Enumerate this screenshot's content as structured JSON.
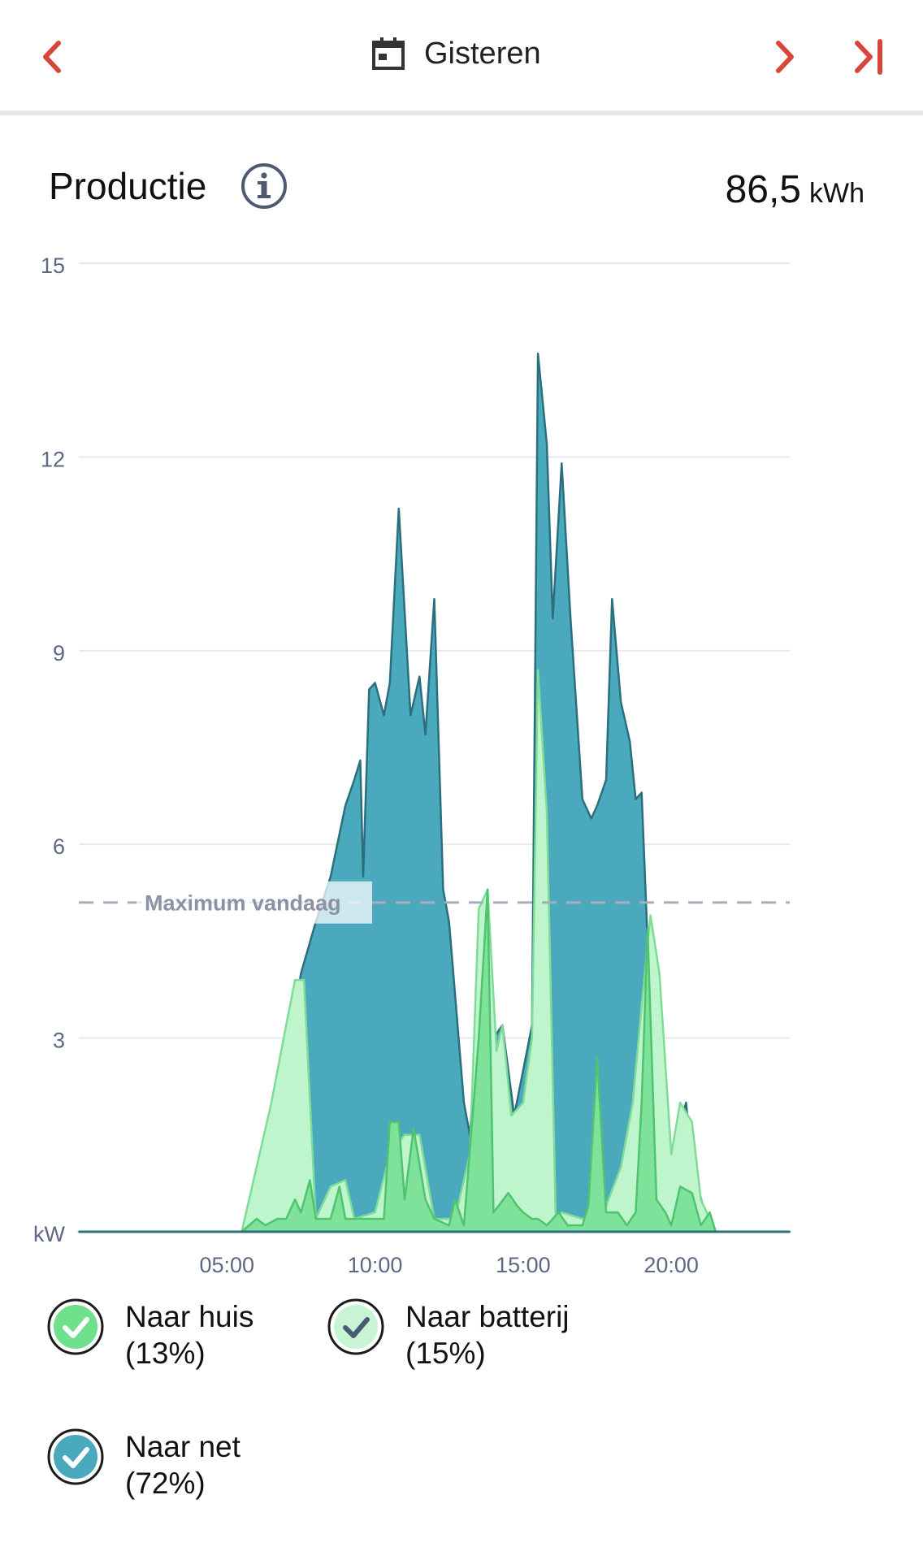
{
  "header": {
    "title": "Gisteren",
    "colors": {
      "accent": "#d8453b"
    }
  },
  "section": {
    "title": "Productie",
    "total_value": "86,5",
    "total_unit": "kWh"
  },
  "chart_data": {
    "type": "area",
    "ylabel": "kW",
    "ylim": [
      0,
      15
    ],
    "yticks": [
      "15",
      "12",
      "9",
      "6",
      "3"
    ],
    "xlim": [
      0,
      24
    ],
    "xticks": [
      {
        "x": 5,
        "label": "05:00"
      },
      {
        "x": 10,
        "label": "10:00"
      },
      {
        "x": 15,
        "label": "15:00"
      },
      {
        "x": 20,
        "label": "20:00"
      }
    ],
    "grid": true,
    "reference_line": {
      "label": "Maximum vandaag",
      "value": 5.1
    },
    "series": [
      {
        "name": "Naar net",
        "color": "#4aa9bd",
        "stroke": "#2b6f7e",
        "points": [
          [
            0,
            0
          ],
          [
            5.5,
            0
          ],
          [
            6.3,
            0.5
          ],
          [
            7.0,
            2.5
          ],
          [
            7.5,
            4.0
          ],
          [
            8.0,
            4.8
          ],
          [
            8.5,
            5.5
          ],
          [
            9.0,
            6.6
          ],
          [
            9.3,
            7.0
          ],
          [
            9.5,
            7.3
          ],
          [
            9.6,
            5.5
          ],
          [
            9.8,
            8.4
          ],
          [
            10.0,
            8.5
          ],
          [
            10.3,
            8.0
          ],
          [
            10.5,
            8.5
          ],
          [
            10.8,
            11.2
          ],
          [
            11.2,
            8.0
          ],
          [
            11.5,
            8.6
          ],
          [
            11.7,
            7.7
          ],
          [
            12.0,
            9.8
          ],
          [
            12.3,
            5.3
          ],
          [
            12.5,
            4.8
          ],
          [
            13.0,
            2.0
          ],
          [
            13.2,
            1.5
          ],
          [
            13.5,
            3.5
          ],
          [
            13.8,
            5.3
          ],
          [
            14.0,
            3.0
          ],
          [
            14.3,
            3.2
          ],
          [
            14.7,
            1.8
          ],
          [
            15.0,
            2.5
          ],
          [
            15.3,
            3.2
          ],
          [
            15.5,
            13.6
          ],
          [
            15.8,
            12.2
          ],
          [
            16.0,
            9.5
          ],
          [
            16.3,
            11.9
          ],
          [
            16.6,
            9.5
          ],
          [
            17.0,
            6.7
          ],
          [
            17.3,
            6.4
          ],
          [
            17.5,
            6.6
          ],
          [
            17.8,
            7.0
          ],
          [
            18.0,
            9.8
          ],
          [
            18.3,
            8.2
          ],
          [
            18.6,
            7.6
          ],
          [
            18.8,
            6.7
          ],
          [
            19.0,
            6.8
          ],
          [
            19.2,
            4.5
          ],
          [
            19.5,
            2.5
          ],
          [
            20.0,
            1.2
          ],
          [
            20.5,
            2.0
          ],
          [
            20.7,
            1.0
          ],
          [
            21.2,
            0.2
          ],
          [
            21.5,
            0
          ],
          [
            24,
            0
          ]
        ]
      },
      {
        "name": "Naar batterij",
        "color": "#bff5cd",
        "stroke": "#7fdc96",
        "points": [
          [
            0,
            0
          ],
          [
            5.5,
            0
          ],
          [
            6.0,
            1.0
          ],
          [
            6.5,
            2.0
          ],
          [
            7.0,
            3.2
          ],
          [
            7.3,
            3.9
          ],
          [
            7.6,
            3.9
          ],
          [
            8.0,
            0.2
          ],
          [
            8.5,
            0.7
          ],
          [
            9.0,
            0.8
          ],
          [
            9.3,
            0.2
          ],
          [
            10.0,
            0.3
          ],
          [
            10.5,
            1.2
          ],
          [
            11.0,
            1.5
          ],
          [
            11.5,
            1.5
          ],
          [
            12.0,
            0.2
          ],
          [
            12.7,
            0.2
          ],
          [
            13.2,
            1.2
          ],
          [
            13.5,
            5.0
          ],
          [
            13.8,
            5.3
          ],
          [
            14.1,
            2.8
          ],
          [
            14.3,
            3.2
          ],
          [
            14.6,
            1.8
          ],
          [
            15.0,
            2.0
          ],
          [
            15.3,
            3.0
          ],
          [
            15.5,
            8.7
          ],
          [
            15.8,
            6.5
          ],
          [
            16.1,
            0.2
          ],
          [
            16.3,
            0.3
          ],
          [
            17.0,
            0.2
          ],
          [
            17.6,
            0.2
          ],
          [
            17.8,
            0.4
          ],
          [
            18.3,
            1.0
          ],
          [
            18.7,
            2.0
          ],
          [
            19.0,
            3.5
          ],
          [
            19.3,
            4.9
          ],
          [
            19.6,
            4.0
          ],
          [
            20.0,
            1.2
          ],
          [
            20.3,
            2.0
          ],
          [
            20.7,
            1.7
          ],
          [
            21.0,
            0.5
          ],
          [
            21.5,
            0
          ],
          [
            24,
            0
          ]
        ]
      },
      {
        "name": "Naar huis",
        "color": "#7ee29b",
        "stroke": "#4fc36e",
        "points": [
          [
            0,
            0
          ],
          [
            5.5,
            0
          ],
          [
            6.0,
            0.2
          ],
          [
            6.3,
            0.1
          ],
          [
            6.7,
            0.2
          ],
          [
            7.0,
            0.2
          ],
          [
            7.3,
            0.5
          ],
          [
            7.5,
            0.3
          ],
          [
            7.8,
            0.8
          ],
          [
            8.0,
            0.2
          ],
          [
            8.5,
            0.2
          ],
          [
            8.8,
            0.7
          ],
          [
            9.0,
            0.2
          ],
          [
            9.5,
            0.2
          ],
          [
            10.0,
            0.2
          ],
          [
            10.3,
            0.2
          ],
          [
            10.5,
            1.7
          ],
          [
            10.8,
            1.7
          ],
          [
            11.0,
            0.5
          ],
          [
            11.3,
            1.6
          ],
          [
            11.7,
            0.5
          ],
          [
            12.0,
            0.2
          ],
          [
            12.5,
            0.1
          ],
          [
            12.7,
            0.5
          ],
          [
            13.0,
            0.1
          ],
          [
            13.5,
            3.0
          ],
          [
            13.8,
            5.3
          ],
          [
            14.0,
            0.3
          ],
          [
            14.5,
            0.6
          ],
          [
            14.8,
            0.4
          ],
          [
            15.0,
            0.3
          ],
          [
            15.3,
            0.2
          ],
          [
            15.5,
            0.2
          ],
          [
            15.8,
            0.1
          ],
          [
            16.2,
            0.3
          ],
          [
            16.5,
            0.1
          ],
          [
            17.0,
            0.1
          ],
          [
            17.2,
            0.4
          ],
          [
            17.5,
            2.7
          ],
          [
            17.8,
            0.3
          ],
          [
            18.2,
            0.3
          ],
          [
            18.5,
            0.1
          ],
          [
            18.8,
            0.3
          ],
          [
            19.0,
            2.0
          ],
          [
            19.2,
            4.7
          ],
          [
            19.5,
            0.5
          ],
          [
            19.8,
            0.3
          ],
          [
            20.0,
            0.1
          ],
          [
            20.3,
            0.7
          ],
          [
            20.7,
            0.6
          ],
          [
            21.0,
            0.1
          ],
          [
            21.3,
            0.3
          ],
          [
            21.5,
            0
          ],
          [
            24,
            0
          ]
        ]
      }
    ]
  },
  "legend": {
    "items": [
      {
        "name": "Naar huis",
        "line1": "Naar huis",
        "line2": "(13%)",
        "fill": "#6fe08c",
        "checkmark": "#ffffff"
      },
      {
        "name": "Naar batterij",
        "line1": "Naar batterij",
        "line2": "(15%)",
        "fill": "#c7f5d3",
        "checkmark": "#4a5a70"
      },
      {
        "name": "Naar net",
        "line1": "Naar net",
        "line2": "(72%)",
        "fill": "#4aa9bd",
        "checkmark": "#ffffff"
      }
    ]
  }
}
